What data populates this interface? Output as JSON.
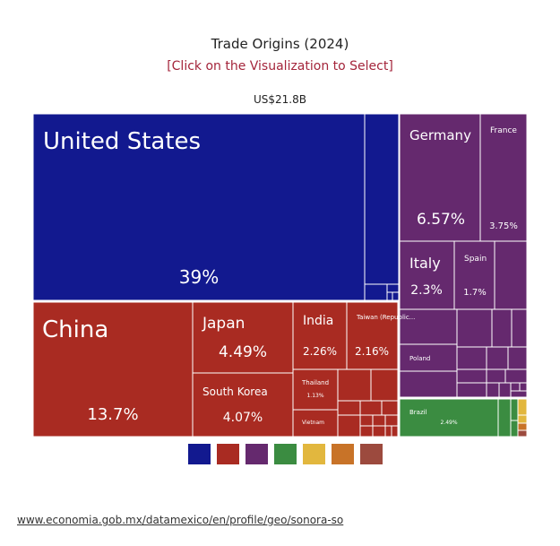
{
  "header": {
    "title": "Trade Origins (2024)",
    "subtitle": "[Click on the Visualization to Select]",
    "total": "US$21.8B"
  },
  "chart_data": {
    "type": "treemap",
    "title": "Trade Origins (2024)",
    "total": "US$21.8B",
    "colors": {
      "north_america": "#12198f",
      "asia": "#a92b22",
      "europe": "#65296e",
      "south_america": "#3b8c41",
      "africa": "#e2b73e",
      "oceania": "#c87328",
      "other": "#9c4a3e"
    },
    "regions": [
      {
        "id": "north_america",
        "color": "#12198f",
        "items": [
          {
            "name": "United States",
            "value": 39.0,
            "label": "39%"
          }
        ]
      },
      {
        "id": "asia",
        "color": "#a92b22",
        "items": [
          {
            "name": "China",
            "value": 13.7,
            "label": "13.7%"
          },
          {
            "name": "Japan",
            "value": 4.49,
            "label": "4.49%"
          },
          {
            "name": "South Korea",
            "value": 4.07,
            "label": "4.07%"
          },
          {
            "name": "India",
            "value": 2.26,
            "label": "2.26%"
          },
          {
            "name": "Taiwan (Republic...",
            "value": 2.16,
            "label": "2.16%"
          },
          {
            "name": "Thailand",
            "value": 1.13,
            "label": "1.13%"
          },
          {
            "name": "Vietnam",
            "value": null,
            "label": ""
          }
        ]
      },
      {
        "id": "europe",
        "color": "#65296e",
        "items": [
          {
            "name": "Germany",
            "value": 6.57,
            "label": "6.57%"
          },
          {
            "name": "France",
            "value": 3.75,
            "label": "3.75%"
          },
          {
            "name": "Italy",
            "value": 2.3,
            "label": "2.3%"
          },
          {
            "name": "Spain",
            "value": 1.7,
            "label": "1.7%"
          },
          {
            "name": "Poland",
            "value": null,
            "label": ""
          }
        ]
      },
      {
        "id": "south_america",
        "color": "#3b8c41",
        "items": [
          {
            "name": "Brazil",
            "value": 2.49,
            "label": "2.49%"
          }
        ]
      }
    ]
  },
  "legend": [
    {
      "id": "north_america",
      "color": "#12198f"
    },
    {
      "id": "asia",
      "color": "#a92b22"
    },
    {
      "id": "europe",
      "color": "#65296e"
    },
    {
      "id": "south_america",
      "color": "#3b8c41"
    },
    {
      "id": "africa",
      "color": "#e2b73e"
    },
    {
      "id": "oceania",
      "color": "#c87328"
    },
    {
      "id": "other",
      "color": "#9c4a3e"
    }
  ],
  "footer": {
    "url": "www.economia.gob.mx/datamexico/en/profile/geo/sonora-so"
  }
}
